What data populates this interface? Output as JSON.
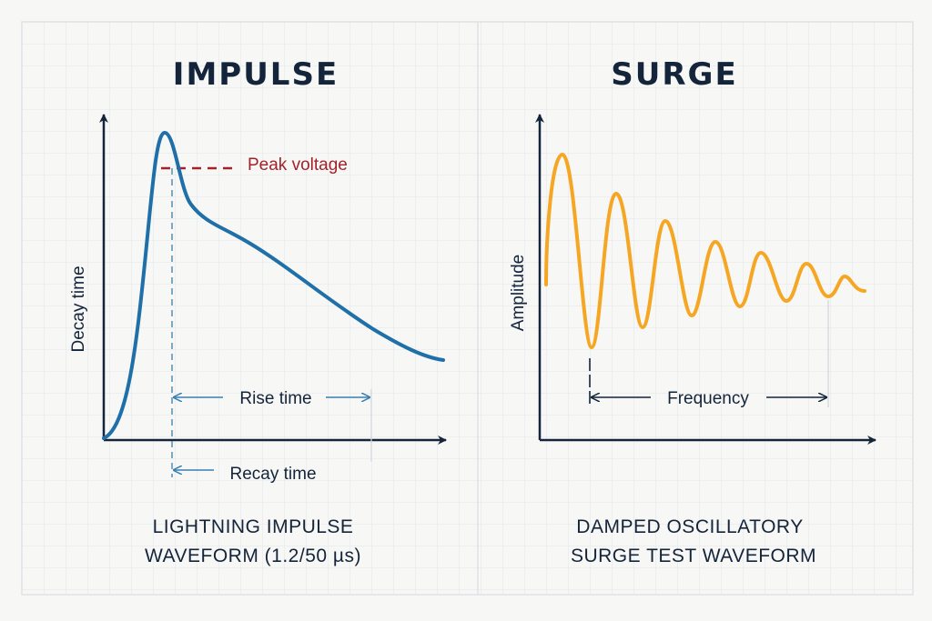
{
  "left_panel": {
    "title": "IMPULSE",
    "y_axis_label": "Decay time",
    "peak_label": "Peak voltage",
    "rise_label": "Rise time",
    "recay_label": "Recay time",
    "caption_line1": "LIGHTNING IMPULSE",
    "caption_line2": "WAVEFORM (1.2/50 µs)",
    "curve_color": "#1f6fa8",
    "peak_color": "#a3222a"
  },
  "right_panel": {
    "title": "SURGE",
    "y_axis_label": "Amplitude",
    "frequency_label": "Frequency",
    "caption_line1": "DAMPED OSCILLATORY",
    "caption_line2": "SURGE TEST WAVEFORM",
    "curve_color": "#f5a623"
  }
}
